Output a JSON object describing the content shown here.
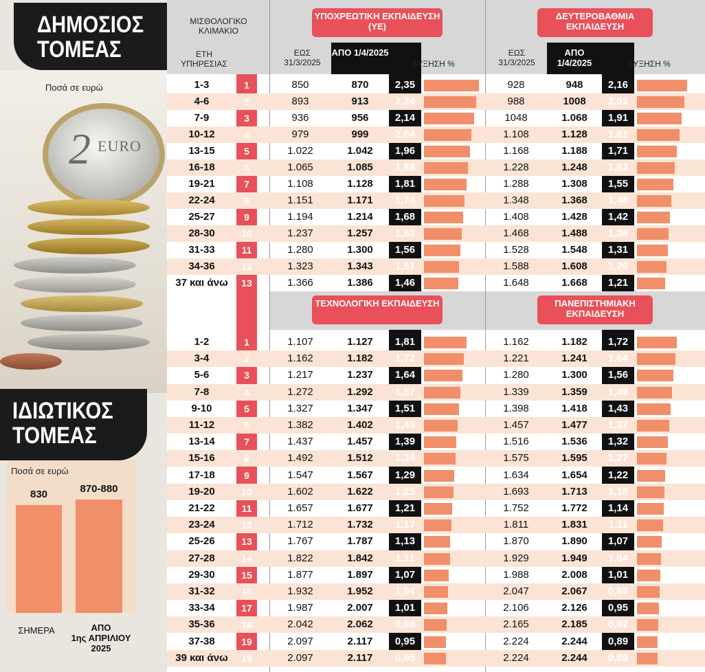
{
  "left": {
    "public_title": [
      "ΔΗΜΟΣΙΟΣ",
      "ΤΟΜΕΑΣ"
    ],
    "coin_note": "Ποσά σε ευρώ",
    "coin_text": "2",
    "coin_euro": "EURO",
    "private_title": [
      "ΙΔΙΩΤΙΚΟΣ",
      "ΤΟΜΕΑΣ"
    ],
    "private_note": "Ποσά σε ευρώ"
  },
  "colors": {
    "red": "#e8505a",
    "bar": "#f08f6a",
    "black": "#111111",
    "alt_row": "#fbe4d5",
    "header": "#d7d7d7"
  },
  "headers": {
    "scale_label": "ΜΙΣΘΟΛΟΓΙΚΟ ΚΛΙΜΑΚΙΟ",
    "years_label": "ΕΤΗ ΥΠΗΡΕΣΙΑΣ",
    "until_label": "ΕΩΣ 31/3/2025",
    "from_label": "ΑΠΟ 1/4/2025",
    "increase_label": "ΑΥΞΗΣΗ %",
    "primary": "ΥΠΟΧΡΕΩΤΙΚΗ ΕΚΠΑΙΔΕΥΣΗ (ΥΕ)",
    "secondary": "ΔΕΥΤΕΡΟΒΑΘΜΙΑ ΕΚΠΑΙΔΕΥΣΗ",
    "technological": "ΤΕΧΝΟΛΟΓΙΚΗ ΕΚΠΑΙΔΕΥΣΗ",
    "university": "ΠΑΝΕΠΙΣΤΗΜΙΑΚΗ ΕΚΠΑΙΔΕΥΣΗ"
  },
  "chart_data": [
    {
      "type": "table",
      "title": "ΥΠΟΧΡΕΩΤΙΚΗ ΕΚΠΑΙΔΕΥΣΗ (ΥΕ) / ΔΕΥΤΕΡΟΒΑΘΜΙΑ ΕΚΠΑΙΔΕΥΣΗ",
      "rows": [
        {
          "years": "1-3",
          "step": "1",
          "ye_old": "850",
          "ye_new": "870",
          "ye_pct": "2,35",
          "de_old": "928",
          "de_new": "948",
          "de_pct": "2,16"
        },
        {
          "years": "4-6",
          "step": "2",
          "ye_old": "893",
          "ye_new": "913",
          "ye_pct": "2,24",
          "de_old": "988",
          "de_new": "1008",
          "de_pct": "2,02"
        },
        {
          "years": "7-9",
          "step": "3",
          "ye_old": "936",
          "ye_new": "956",
          "ye_pct": "2,14",
          "de_old": "1048",
          "de_new": "1.068",
          "de_pct": "1,91"
        },
        {
          "years": "10-12",
          "step": "4",
          "ye_old": "979",
          "ye_new": "999",
          "ye_pct": "2,04",
          "de_old": "1.108",
          "de_new": "1.128",
          "de_pct": "1,81"
        },
        {
          "years": "13-15",
          "step": "5",
          "ye_old": "1.022",
          "ye_new": "1.042",
          "ye_pct": "1,96",
          "de_old": "1.168",
          "de_new": "1.188",
          "de_pct": "1,71"
        },
        {
          "years": "16-18",
          "step": "6",
          "ye_old": "1.065",
          "ye_new": "1.085",
          "ye_pct": "1,88",
          "de_old": "1.228",
          "de_new": "1.248",
          "de_pct": "1,63"
        },
        {
          "years": "19-21",
          "step": "7",
          "ye_old": "1.108",
          "ye_new": "1.128",
          "ye_pct": "1,81",
          "de_old": "1.288",
          "de_new": "1.308",
          "de_pct": "1,55"
        },
        {
          "years": "22-24",
          "step": "8",
          "ye_old": "1.151",
          "ye_new": "1.171",
          "ye_pct": "1,74",
          "de_old": "1.348",
          "de_new": "1.368",
          "de_pct": "1,48"
        },
        {
          "years": "25-27",
          "step": "9",
          "ye_old": "1.194",
          "ye_new": "1.214",
          "ye_pct": "1,68",
          "de_old": "1.408",
          "de_new": "1.428",
          "de_pct": "1,42"
        },
        {
          "years": "28-30",
          "step": "10",
          "ye_old": "1.237",
          "ye_new": "1.257",
          "ye_pct": "1,62",
          "de_old": "1.468",
          "de_new": "1.488",
          "de_pct": "1,36"
        },
        {
          "years": "31-33",
          "step": "11",
          "ye_old": "1.280",
          "ye_new": "1.300",
          "ye_pct": "1,56",
          "de_old": "1.528",
          "de_new": "1.548",
          "de_pct": "1,31"
        },
        {
          "years": "34-36",
          "step": "12",
          "ye_old": "1.323",
          "ye_new": "1.343",
          "ye_pct": "1,51",
          "de_old": "1.588",
          "de_new": "1.608",
          "de_pct": "1,26"
        },
        {
          "years": "37 και άνω",
          "step": "13",
          "ye_old": "1.366",
          "ye_new": "1.386",
          "ye_pct": "1,46",
          "de_old": "1.648",
          "de_new": "1.668",
          "de_pct": "1,21"
        }
      ]
    },
    {
      "type": "table",
      "title": "ΤΕΧΝΟΛΟΓΙΚΗ ΕΚΠΑΙΔΕΥΣΗ / ΠΑΝΕΠΙΣΤΗΜΙΑΚΗ ΕΚΠΑΙΔΕΥΣΗ",
      "rows": [
        {
          "years": "1-2",
          "step": "1",
          "te_old": "1.107",
          "te_new": "1.127",
          "te_pct": "1,81",
          "pe_old": "1.162",
          "pe_new": "1.182",
          "pe_pct": "1,72"
        },
        {
          "years": "3-4",
          "step": "2",
          "te_old": "1.162",
          "te_new": "1.182",
          "te_pct": "1,72",
          "pe_old": "1.221",
          "pe_new": "1.241",
          "pe_pct": "1,64"
        },
        {
          "years": "5-6",
          "step": "3",
          "te_old": "1.217",
          "te_new": "1.237",
          "te_pct": "1,64",
          "pe_old": "1.280",
          "pe_new": "1.300",
          "pe_pct": "1,56"
        },
        {
          "years": "7-8",
          "step": "4",
          "te_old": "1.272",
          "te_new": "1.292",
          "te_pct": "1,57",
          "pe_old": "1.339",
          "pe_new": "1.359",
          "pe_pct": "1,49"
        },
        {
          "years": "9-10",
          "step": "5",
          "te_old": "1.327",
          "te_new": "1.347",
          "te_pct": "1,51",
          "pe_old": "1.398",
          "pe_new": "1.418",
          "pe_pct": "1,43"
        },
        {
          "years": "11-12",
          "step": "6",
          "te_old": "1.382",
          "te_new": "1.402",
          "te_pct": "1,45",
          "pe_old": "1.457",
          "pe_new": "1.477",
          "pe_pct": "1,37"
        },
        {
          "years": "13-14",
          "step": "7",
          "te_old": "1.437",
          "te_new": "1.457",
          "te_pct": "1,39",
          "pe_old": "1.516",
          "pe_new": "1.536",
          "pe_pct": "1,32"
        },
        {
          "years": "15-16",
          "step": "8",
          "te_old": "1.492",
          "te_new": "1.512",
          "te_pct": "1,34",
          "pe_old": "1.575",
          "pe_new": "1.595",
          "pe_pct": "1,27"
        },
        {
          "years": "17-18",
          "step": "9",
          "te_old": "1.547",
          "te_new": "1.567",
          "te_pct": "1,29",
          "pe_old": "1.634",
          "pe_new": "1.654",
          "pe_pct": "1,22"
        },
        {
          "years": "19-20",
          "step": "10",
          "te_old": "1.602",
          "te_new": "1.622",
          "te_pct": "1,25",
          "pe_old": "1.693",
          "pe_new": "1.713",
          "pe_pct": "1,18"
        },
        {
          "years": "21-22",
          "step": "11",
          "te_old": "1.657",
          "te_new": "1.677",
          "te_pct": "1,21",
          "pe_old": "1.752",
          "pe_new": "1.772",
          "pe_pct": "1,14"
        },
        {
          "years": "23-24",
          "step": "12",
          "te_old": "1.712",
          "te_new": "1.732",
          "te_pct": "1,17",
          "pe_old": "1.811",
          "pe_new": "1.831",
          "pe_pct": "1,11"
        },
        {
          "years": "25-26",
          "step": "13",
          "te_old": "1.767",
          "te_new": "1.787",
          "te_pct": "1,13",
          "pe_old": "1.870",
          "pe_new": "1.890",
          "pe_pct": "1,07"
        },
        {
          "years": "27-28",
          "step": "14",
          "te_old": "1.822",
          "te_new": "1.842",
          "te_pct": "1,11",
          "pe_old": "1.929",
          "pe_new": "1.949",
          "pe_pct": "1,04"
        },
        {
          "years": "29-30",
          "step": "15",
          "te_old": "1.877",
          "te_new": "1.897",
          "te_pct": "1,07",
          "pe_old": "1.988",
          "pe_new": "2.008",
          "pe_pct": "1,01"
        },
        {
          "years": "31-32",
          "step": "16",
          "te_old": "1.932",
          "te_new": "1.952",
          "te_pct": "1,04",
          "pe_old": "2.047",
          "pe_new": "2.067",
          "pe_pct": "0,98"
        },
        {
          "years": "33-34",
          "step": "17",
          "te_old": "1.987",
          "te_new": "2.007",
          "te_pct": "1,01",
          "pe_old": "2.106",
          "pe_new": "2.126",
          "pe_pct": "0,95"
        },
        {
          "years": "35-36",
          "step": "18",
          "te_old": "2.042",
          "te_new": "2.062",
          "te_pct": "0,98",
          "pe_old": "2.165",
          "pe_new": "2.185",
          "pe_pct": "0,92"
        },
        {
          "years": "37-38",
          "step": "19",
          "te_old": "2.097",
          "te_new": "2.117",
          "te_pct": "0,95",
          "pe_old": "2.224",
          "pe_new": "2.244",
          "pe_pct": "0,89"
        },
        {
          "years": "39 και άνω",
          "step": "19",
          "te_old": "2.097",
          "te_new": "2.117",
          "te_pct": "0,95",
          "pe_old": "2.224",
          "pe_new": "2.244",
          "pe_pct": "0,89"
        }
      ]
    },
    {
      "type": "bar",
      "title": "ΙΔΙΩΤΙΚΟΣ ΤΟΜΕΑΣ",
      "categories": [
        "ΣΗΜΕΡΑ",
        "ΑΠΟ 1ης ΑΠΡΙΛΙΟΥ 2025"
      ],
      "category_lines": [
        [
          "ΣΗΜΕΡΑ"
        ],
        [
          "ΑΠΟ",
          "1ης ΑΠΡΙΛΙΟΥ",
          "2025"
        ]
      ],
      "values": [
        830,
        875
      ],
      "value_labels": [
        "830",
        "870-880"
      ],
      "ylim": [
        0,
        900
      ]
    }
  ]
}
